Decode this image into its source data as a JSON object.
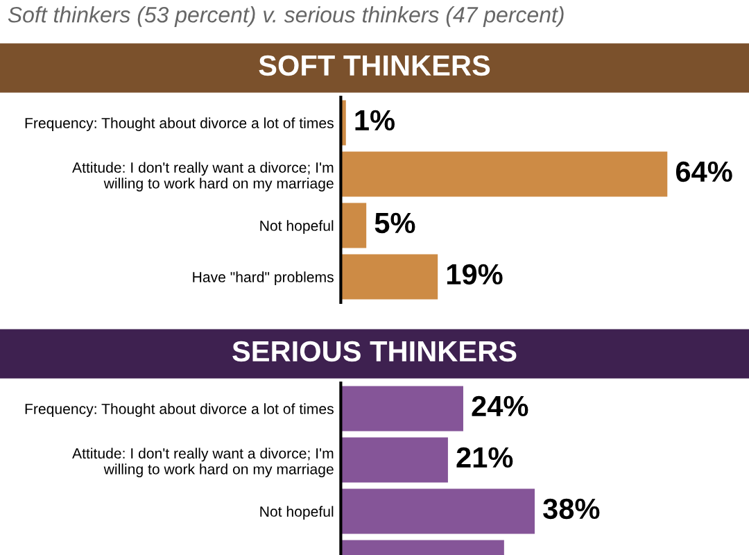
{
  "chart_data": [
    {
      "type": "bar",
      "orientation": "horizontal",
      "subtitle": "Soft thinkers (53 percent) v. serious thinkers (47 percent)",
      "title": "SOFT THINKERS",
      "categories": [
        "Frequency: Thought about divorce a lot of times",
        "Attitude: I don't really want a divorce; I'm\nwilling to work hard on my marriage",
        "Not hopeful",
        "Have \"hard\" problems"
      ],
      "values": [
        1,
        64,
        5,
        19
      ],
      "color": "#cd8b45",
      "value_labels": [
        "1%",
        "64%",
        "5%",
        "19%"
      ],
      "tick_labels": "y",
      "grid": false,
      "legend": false
    },
    {
      "type": "bar",
      "orientation": "horizontal",
      "title": "SERIOUS THINKERS",
      "categories": [
        "Frequency: Thought about divorce a lot of times",
        "Attitude: I don't really want a divorce; I'm\nwilling to work hard on my marriage",
        "Not hopeful",
        null
      ],
      "values": [
        24,
        21,
        38,
        32
      ],
      "color": "#855598",
      "value_labels": [
        "24%",
        "21%",
        "38%",
        null
      ],
      "tick_labels": "y",
      "grid": false,
      "legend": false
    }
  ]
}
